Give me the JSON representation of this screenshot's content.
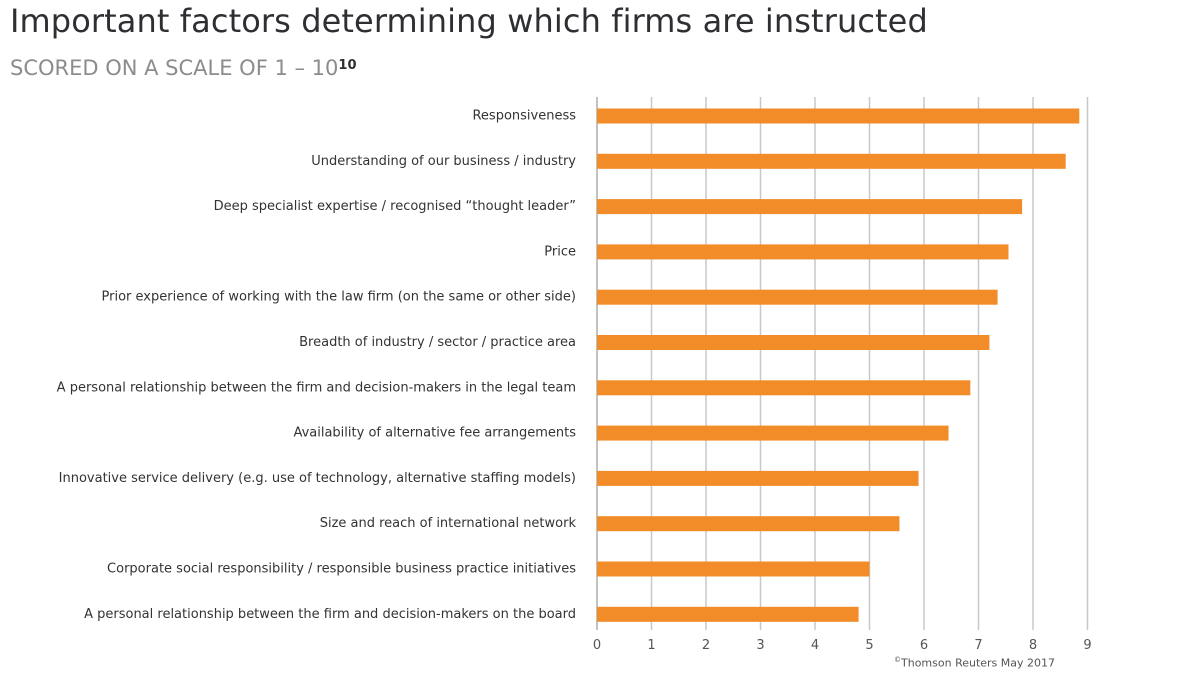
{
  "header": {
    "title": "Important factors determining which firms are instructed",
    "subtitle": "SCORED ON A SCALE OF 1 – 10",
    "subtitle_superscript": "10"
  },
  "footer": {
    "source_mark": "©",
    "source": "Thomson Reuters May 2017"
  },
  "colors": {
    "bar": "#f28c28",
    "grid": "#c8c8c8",
    "axis": "#999999"
  },
  "chart_data": {
    "type": "bar",
    "orientation": "horizontal",
    "title": "Important factors determining which firms are instructed",
    "subtitle": "SCORED ON A SCALE OF 1 – 10",
    "categories": [
      "Responsiveness",
      "Understanding of our business / industry",
      "Deep specialist expertise / recognised “thought leader”",
      "Price",
      "Prior experience of working with the law firm (on the same or other side)",
      "Breadth of industry / sector / practice area",
      "A personal relationship between the firm and decision-makers in the legal team",
      "Availability of alternative fee arrangements",
      "Innovative service delivery (e.g. use of technology, alternative staffing models)",
      "Size and reach of international network",
      "Corporate social responsibility / responsible business practice initiatives",
      "A personal relationship between the firm and decision-makers on the board"
    ],
    "values": [
      8.85,
      8.6,
      7.8,
      7.55,
      7.35,
      7.2,
      6.85,
      6.45,
      5.9,
      5.55,
      5.0,
      4.8
    ],
    "xlim": [
      0,
      9
    ],
    "xticks": [
      "0",
      "1",
      "2",
      "3",
      "4",
      "5",
      "6",
      "7",
      "8",
      "9"
    ],
    "grid": true,
    "legend": "none"
  }
}
